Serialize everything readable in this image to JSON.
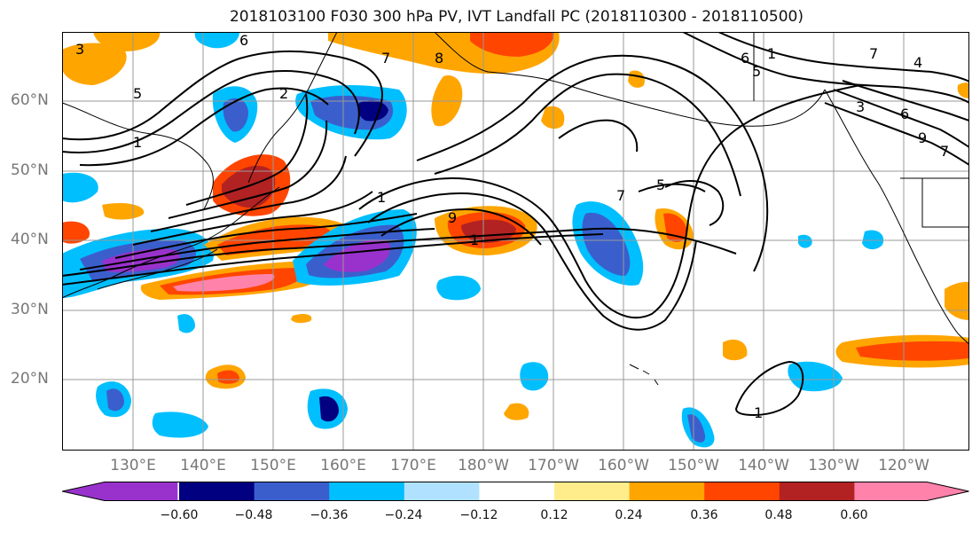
{
  "title": "2018103100 F030 300 hPa PV, IVT Landfall PC (2018110300 - 2018110500)",
  "lat_labels": [
    "20°N",
    "30°N",
    "40°N",
    "50°N",
    "60°N"
  ],
  "lon_labels": [
    "130°E",
    "140°E",
    "150°E",
    "160°E",
    "170°E",
    "180°W",
    "170°W",
    "160°W",
    "150°W",
    "140°W",
    "130°W",
    "120°W"
  ],
  "colorbar": {
    "colors": [
      "#9932cc",
      "#000080",
      "#3a5fcd",
      "#00bfff",
      "#b0e2ff",
      "#ffffff",
      "#ffec8b",
      "#ffa500",
      "#ff4500",
      "#b22222",
      "#ff82ab"
    ],
    "tick_labels": [
      "−0.60",
      "−0.48",
      "−0.36",
      "−0.24",
      "−0.12",
      "0.12",
      "0.24",
      "0.36",
      "0.48",
      "0.60"
    ]
  },
  "contour_labels": [
    "3",
    "6",
    "5",
    "1",
    "2",
    "8",
    "7",
    "1",
    "9",
    "1",
    "7",
    "5",
    "1",
    "6",
    "5",
    "7",
    "4",
    "3",
    "6",
    "9",
    "7",
    "1"
  ]
}
